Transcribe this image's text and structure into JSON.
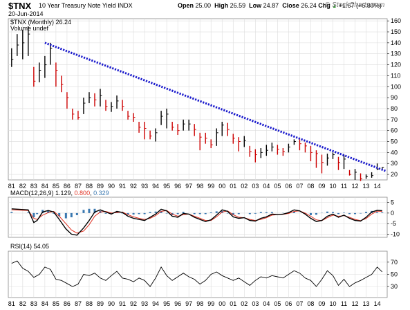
{
  "header": {
    "symbol": "$TNX",
    "description": "10 Year Treasury Note Yield",
    "exchange": "INDX",
    "date": "20-Jun-2014",
    "open_label": "Open",
    "open": "25.00",
    "high_label": "High",
    "high": "26.59",
    "low_label": "Low",
    "low": "24.87",
    "close_label": "Close",
    "close": "26.24",
    "chg_label": "Chg",
    "chg": "+1.67 (+6.80%)",
    "brand": "© StockCharts.com",
    "arrow": "▲"
  },
  "colors": {
    "price_up": "#000000",
    "price_down": "#cc0000",
    "trendline": "#1a1acc",
    "macd": "#000000",
    "signal": "#e03020",
    "histogram": "#3a78b0",
    "grid": "#dcdcdc",
    "rsi": "#000000"
  },
  "chart_data": [
    {
      "type": "bar",
      "pane": "price",
      "title": "$TNX (Monthly) 26.24",
      "legend_sub": "Volume undef",
      "yticks": [
        20,
        30,
        40,
        50,
        60,
        70,
        80,
        90,
        100,
        110,
        120,
        130,
        140,
        150,
        160
      ],
      "ylim": [
        15,
        162
      ],
      "xlabels": [
        "81",
        "82",
        "83",
        "84",
        "85",
        "86",
        "87",
        "88",
        "89",
        "90",
        "91",
        "92",
        "93",
        "94",
        "95",
        "96",
        "97",
        "98",
        "99",
        "00",
        "01",
        "02",
        "03",
        "04",
        "05",
        "06",
        "07",
        "08",
        "09",
        "10",
        "11",
        "12",
        "13",
        "14"
      ],
      "x": [
        1981.0,
        1981.5,
        1982.0,
        1982.5,
        1983.0,
        1983.5,
        1984.0,
        1984.5,
        1985.0,
        1985.5,
        1986.0,
        1986.5,
        1987.0,
        1987.5,
        1988.0,
        1988.5,
        1989.0,
        1989.5,
        1990.0,
        1990.5,
        1991.0,
        1991.5,
        1992.0,
        1992.5,
        1993.0,
        1993.5,
        1994.0,
        1994.5,
        1995.0,
        1995.5,
        1996.0,
        1996.5,
        1997.0,
        1997.5,
        1998.0,
        1998.5,
        1999.0,
        1999.5,
        2000.0,
        2000.5,
        2001.0,
        2001.5,
        2002.0,
        2002.5,
        2003.0,
        2003.5,
        2004.0,
        2004.5,
        2005.0,
        2005.5,
        2006.0,
        2006.5,
        2007.0,
        2007.5,
        2008.0,
        2008.5,
        2009.0,
        2009.5,
        2010.0,
        2010.5,
        2011.0,
        2011.5,
        2012.0,
        2012.5,
        2013.0,
        2013.5,
        2014.0,
        2014.45
      ],
      "close": [
        125,
        138,
        140,
        148,
        105,
        115,
        120,
        135,
        115,
        102,
        90,
        75,
        72,
        85,
        90,
        88,
        92,
        82,
        82,
        87,
        82,
        73,
        72,
        63,
        62,
        55,
        58,
        73,
        75,
        63,
        60,
        66,
        66,
        61,
        54,
        53,
        47,
        58,
        65,
        61,
        53,
        50,
        51,
        41,
        38,
        40,
        42,
        45,
        43,
        41,
        45,
        50,
        48,
        46,
        40,
        39,
        31,
        35,
        38,
        31,
        34,
        20,
        22,
        16,
        18,
        19,
        25,
        26.24
      ],
      "high": [
        135,
        148,
        152,
        155,
        118,
        122,
        128,
        140,
        122,
        110,
        95,
        80,
        78,
        90,
        95,
        94,
        98,
        88,
        86,
        92,
        88,
        78,
        76,
        68,
        68,
        60,
        62,
        78,
        80,
        68,
        66,
        70,
        70,
        66,
        58,
        58,
        52,
        62,
        68,
        67,
        57,
        54,
        55,
        46,
        43,
        44,
        47,
        49,
        47,
        44,
        48,
        52,
        52,
        49,
        46,
        42,
        38,
        39,
        40,
        36,
        38,
        24,
        25,
        21,
        20,
        22,
        30,
        26.59
      ],
      "low": [
        118,
        128,
        125,
        128,
        100,
        104,
        108,
        120,
        100,
        95,
        80,
        70,
        70,
        75,
        85,
        82,
        82,
        78,
        77,
        80,
        78,
        70,
        68,
        58,
        52,
        52,
        50,
        65,
        62,
        60,
        56,
        60,
        60,
        55,
        42,
        48,
        44,
        46,
        55,
        55,
        48,
        41,
        45,
        36,
        31,
        35,
        37,
        41,
        38,
        37,
        40,
        47,
        42,
        40,
        32,
        26,
        21,
        28,
        34,
        24,
        25,
        19,
        15,
        14,
        16,
        17,
        24,
        24.87
      ],
      "trendline": {
        "x0": 1984.0,
        "y0": 140,
        "x1": 2014.8,
        "y1": 23
      }
    },
    {
      "type": "line",
      "pane": "macd",
      "title": "MACD(12,26,9)",
      "macd_label": "1.129",
      "signal_label": "0.800",
      "hist_label": "0.329",
      "yticks": [
        5,
        0,
        -5,
        -10
      ],
      "ylim": [
        -11.5,
        7.5
      ],
      "x": [
        1981.0,
        1982.5,
        1983.0,
        1983.3,
        1983.8,
        1984.3,
        1984.8,
        1985.3,
        1985.9,
        1986.4,
        1986.9,
        1987.5,
        1988.0,
        1988.5,
        1989.0,
        1989.5,
        1990.0,
        1990.5,
        1991.0,
        1991.5,
        1992.0,
        1992.5,
        1993.0,
        1993.5,
        1994.0,
        1994.5,
        1995.0,
        1995.5,
        1996.0,
        1996.5,
        1997.0,
        1997.5,
        1998.0,
        1998.5,
        1999.0,
        1999.5,
        2000.0,
        2000.5,
        2001.0,
        2001.5,
        2002.0,
        2002.5,
        2003.0,
        2003.5,
        2004.0,
        2004.5,
        2005.0,
        2005.5,
        2006.0,
        2006.5,
        2007.0,
        2007.5,
        2008.0,
        2008.5,
        2009.0,
        2009.5,
        2010.0,
        2010.5,
        2011.0,
        2011.5,
        2012.0,
        2012.5,
        2013.0,
        2013.5,
        2014.0,
        2014.45
      ],
      "macd": [
        2.0,
        1.5,
        -4.5,
        -3.5,
        0.5,
        1.2,
        0.5,
        -3.0,
        -7.5,
        -10.0,
        -10.5,
        -7.0,
        -3.5,
        0.5,
        1.5,
        0.5,
        -0.5,
        0.8,
        0.3,
        -1.5,
        -2.5,
        -3.0,
        -3.5,
        -2.0,
        -0.5,
        1.8,
        1.0,
        -1.5,
        -2.0,
        -0.2,
        -0.5,
        -2.0,
        -3.0,
        -4.0,
        -3.2,
        -1.0,
        1.5,
        0.8,
        -1.8,
        -2.5,
        -2.2,
        -3.5,
        -3.8,
        -2.5,
        -1.8,
        -0.5,
        -0.8,
        -0.5,
        0.2,
        1.5,
        1.0,
        -0.5,
        -2.5,
        -4.0,
        -3.5,
        -1.5,
        -0.5,
        -2.0,
        -1.0,
        -2.5,
        -3.5,
        -3.8,
        -2.0,
        0.5,
        1.3,
        1.129
      ],
      "signal": [
        1.5,
        1.2,
        -2.5,
        -3.0,
        -1.0,
        0.2,
        0.8,
        -1.5,
        -5.0,
        -8.0,
        -9.5,
        -8.5,
        -5.5,
        -1.5,
        0.5,
        0.8,
        0.0,
        0.2,
        0.5,
        -0.8,
        -1.8,
        -2.5,
        -3.0,
        -2.5,
        -1.2,
        0.8,
        1.2,
        -0.5,
        -1.5,
        -0.8,
        -0.5,
        -1.5,
        -2.5,
        -3.5,
        -3.5,
        -1.8,
        0.5,
        1.0,
        -0.8,
        -2.0,
        -2.2,
        -3.0,
        -3.5,
        -3.0,
        -2.2,
        -1.0,
        -0.8,
        -0.6,
        -0.2,
        0.8,
        1.0,
        0.0,
        -1.5,
        -3.2,
        -3.6,
        -2.2,
        -1.0,
        -1.5,
        -1.2,
        -2.0,
        -3.0,
        -3.6,
        -2.6,
        -0.5,
        0.9,
        0.8
      ]
    },
    {
      "type": "line",
      "pane": "rsi",
      "title": "RSI(14)",
      "value_label": "54.05",
      "yticks": [
        70,
        50,
        30
      ],
      "ylim": [
        12,
        88
      ],
      "x": [
        1981.0,
        1981.5,
        1982.0,
        1982.5,
        1983.0,
        1983.5,
        1984.0,
        1984.5,
        1985.0,
        1985.5,
        1986.0,
        1986.5,
        1987.0,
        1987.5,
        1988.0,
        1988.5,
        1989.0,
        1989.5,
        1990.0,
        1990.5,
        1991.0,
        1991.5,
        1992.0,
        1992.5,
        1993.0,
        1993.5,
        1994.0,
        1994.5,
        1995.0,
        1995.5,
        1996.0,
        1996.5,
        1997.0,
        1997.5,
        1998.0,
        1998.5,
        1999.0,
        1999.5,
        2000.0,
        2000.5,
        2001.0,
        2001.5,
        2002.0,
        2002.5,
        2003.0,
        2003.5,
        2004.0,
        2004.5,
        2005.0,
        2005.5,
        2006.0,
        2006.5,
        2007.0,
        2007.5,
        2008.0,
        2008.5,
        2009.0,
        2009.5,
        2010.0,
        2010.5,
        2011.0,
        2011.5,
        2012.0,
        2012.5,
        2013.0,
        2013.5,
        2014.0,
        2014.45
      ],
      "rsi": [
        68,
        72,
        60,
        55,
        45,
        50,
        62,
        58,
        42,
        40,
        35,
        30,
        34,
        50,
        48,
        52,
        44,
        40,
        48,
        55,
        44,
        42,
        38,
        44,
        40,
        30,
        44,
        62,
        48,
        40,
        46,
        52,
        46,
        42,
        34,
        40,
        50,
        54,
        48,
        44,
        40,
        44,
        38,
        32,
        40,
        46,
        44,
        48,
        46,
        44,
        50,
        56,
        52,
        44,
        40,
        30,
        42,
        56,
        48,
        32,
        42,
        30,
        36,
        40,
        45,
        50,
        62,
        54.05
      ]
    }
  ]
}
